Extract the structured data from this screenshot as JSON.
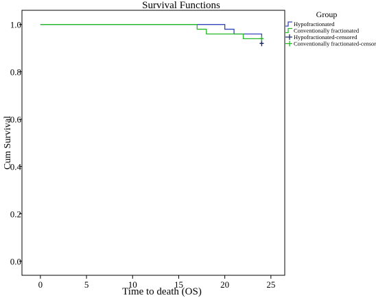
{
  "chart_data": {
    "type": "line",
    "title": "Survival Functions",
    "xlabel": "Time to death (OS)",
    "ylabel": "Cum Survival",
    "xlim": [
      -2,
      26.5
    ],
    "ylim": [
      -0.06,
      1.06
    ],
    "x_ticks": [
      0,
      5,
      10,
      15,
      20,
      25
    ],
    "x_tick_labels": [
      "0",
      "5",
      "10",
      "15",
      "20",
      "25"
    ],
    "y_ticks": [
      0.0,
      0.2,
      0.4,
      0.6,
      0.8,
      1.0
    ],
    "y_tick_labels": [
      "0.0",
      "0.2",
      "0.4",
      "0.6",
      "0.8",
      "1.0"
    ],
    "grid": false,
    "legend_title": "Group",
    "legend_position": "right",
    "series": [
      {
        "name": "Hypofractionated",
        "color": "#3344bb",
        "step_times": [
          0,
          20,
          21,
          24
        ],
        "survival": [
          1.0,
          0.98,
          0.96,
          0.92
        ],
        "end_x": 24
      },
      {
        "name": "Conventionally fractionated",
        "color": "#22bb22",
        "step_times": [
          0,
          17,
          18,
          22
        ],
        "survival": [
          1.0,
          0.98,
          0.96,
          0.94
        ],
        "end_x": 24
      }
    ],
    "censored": [
      {
        "name": "Hypofractionated-censored",
        "color": "#1a2a66",
        "x": 24,
        "y": 0.92
      },
      {
        "name": "Conventionally fractionated-censored",
        "color": "#22bb22",
        "x": 24,
        "y": 0.94
      }
    ]
  }
}
